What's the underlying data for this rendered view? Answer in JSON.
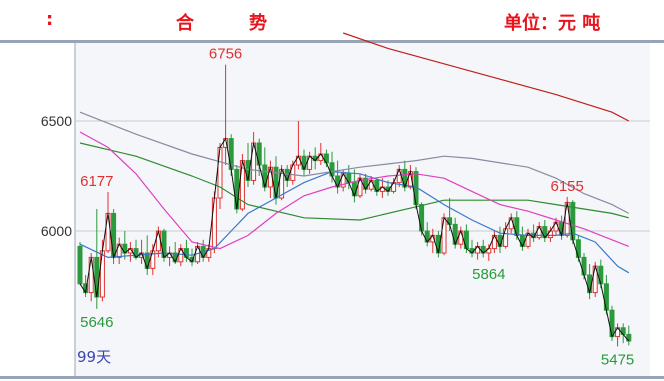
{
  "header": {
    "left": ":",
    "mid1": "合",
    "mid2": "势",
    "unit": "单位：元 吨"
  },
  "chart_data": {
    "type": "candlestick",
    "title": "",
    "xlabel": "",
    "ylabel": "",
    "ylim": [
      5400,
      6900
    ],
    "y_ticks": [
      6500,
      6000
    ],
    "period_label": "99天",
    "grid": "horizontal",
    "colors": {
      "up": "#e03131",
      "down": "#2b9a3c",
      "ma_dark": "#111111",
      "ma_blue": "#3b78c9",
      "ma_green": "#2e8b2e",
      "ma_magenta": "#e040c0",
      "ma_grey": "#8a8aa0",
      "ma_red": "#c0201a",
      "background": "#f4f6fa",
      "grid": "#c7c9cf",
      "frame": "#9aa3b5"
    },
    "annotations": [
      {
        "text": "6756",
        "index": 26,
        "price": 6756,
        "color": "#e03131",
        "pos": "above"
      },
      {
        "text": "6177",
        "index": 3,
        "price": 6177,
        "color": "#e03131",
        "pos": "above"
      },
      {
        "text": "5646",
        "index": 3,
        "price": 5646,
        "color": "#2b9a3c",
        "pos": "below"
      },
      {
        "text": "6155",
        "index": 87,
        "price": 6155,
        "color": "#e03131",
        "pos": "above"
      },
      {
        "text": "5864",
        "index": 73,
        "price": 5864,
        "color": "#2b9a3c",
        "pos": "below"
      },
      {
        "text": "5475",
        "index": 96,
        "price": 5475,
        "color": "#2b9a3c",
        "pos": "below"
      }
    ],
    "candles": [
      [
        5930,
        5950,
        5760,
        5760
      ],
      [
        5760,
        5800,
        5700,
        5720
      ],
      [
        5720,
        5900,
        5680,
        5880
      ],
      [
        5880,
        6100,
        5646,
        5700
      ],
      [
        5700,
        5960,
        5680,
        5910
      ],
      [
        5910,
        6177,
        5900,
        6080
      ],
      [
        6080,
        6100,
        5850,
        5880
      ],
      [
        5880,
        5970,
        5850,
        5940
      ],
      [
        5940,
        6000,
        5870,
        5900
      ],
      [
        5900,
        5950,
        5860,
        5920
      ],
      [
        5920,
        5960,
        5870,
        5880
      ],
      [
        5880,
        5960,
        5850,
        5900
      ],
      [
        5900,
        5980,
        5800,
        5830
      ],
      [
        5830,
        5940,
        5800,
        5910
      ],
      [
        5910,
        6020,
        5880,
        6000
      ],
      [
        6000,
        6010,
        5860,
        5880
      ],
      [
        5880,
        5930,
        5840,
        5900
      ],
      [
        5900,
        5950,
        5850,
        5860
      ],
      [
        5860,
        5940,
        5840,
        5920
      ],
      [
        5920,
        5960,
        5860,
        5880
      ],
      [
        5880,
        5920,
        5840,
        5860
      ],
      [
        5860,
        5950,
        5850,
        5930
      ],
      [
        5930,
        5960,
        5860,
        5880
      ],
      [
        5880,
        5940,
        5860,
        5920
      ],
      [
        5920,
        6180,
        5900,
        6150
      ],
      [
        6150,
        6400,
        6100,
        6380
      ],
      [
        6380,
        6756,
        6300,
        6420
      ],
      [
        6420,
        6440,
        6250,
        6280
      ],
      [
        6280,
        6300,
        6080,
        6100
      ],
      [
        6100,
        6350,
        6090,
        6320
      ],
      [
        6320,
        6400,
        6200,
        6230
      ],
      [
        6230,
        6450,
        6210,
        6400
      ],
      [
        6400,
        6420,
        6250,
        6300
      ],
      [
        6300,
        6380,
        6180,
        6200
      ],
      [
        6200,
        6320,
        6150,
        6290
      ],
      [
        6290,
        6340,
        6120,
        6150
      ],
      [
        6150,
        6300,
        6140,
        6280
      ],
      [
        6280,
        6300,
        6200,
        6230
      ],
      [
        6230,
        6320,
        6210,
        6300
      ],
      [
        6300,
        6500,
        6280,
        6340
      ],
      [
        6340,
        6370,
        6250,
        6280
      ],
      [
        6280,
        6360,
        6260,
        6340
      ],
      [
        6340,
        6380,
        6280,
        6320
      ],
      [
        6320,
        6400,
        6300,
        6350
      ],
      [
        6350,
        6370,
        6290,
        6310
      ],
      [
        6310,
        6360,
        6220,
        6250
      ],
      [
        6250,
        6320,
        6170,
        6200
      ],
      [
        6200,
        6280,
        6180,
        6260
      ],
      [
        6260,
        6300,
        6190,
        6220
      ],
      [
        6220,
        6280,
        6130,
        6160
      ],
      [
        6160,
        6260,
        6150,
        6240
      ],
      [
        6240,
        6260,
        6170,
        6190
      ],
      [
        6190,
        6250,
        6180,
        6230
      ],
      [
        6230,
        6240,
        6160,
        6180
      ],
      [
        6180,
        6240,
        6150,
        6200
      ],
      [
        6200,
        6230,
        6160,
        6180
      ],
      [
        6180,
        6240,
        6170,
        6220
      ],
      [
        6220,
        6300,
        6200,
        6280
      ],
      [
        6280,
        6320,
        6180,
        6200
      ],
      [
        6200,
        6300,
        6190,
        6270
      ],
      [
        6270,
        6290,
        6100,
        6120
      ],
      [
        6120,
        6130,
        5980,
        6000
      ],
      [
        6000,
        6040,
        5930,
        5950
      ],
      [
        5950,
        6010,
        5900,
        5980
      ],
      [
        5980,
        6000,
        5880,
        5900
      ],
      [
        5900,
        6080,
        5890,
        6060
      ],
      [
        6060,
        6150,
        6000,
        6030
      ],
      [
        6030,
        6060,
        5920,
        5940
      ],
      [
        5940,
        6020,
        5920,
        6000
      ],
      [
        6000,
        6030,
        5900,
        5920
      ],
      [
        5920,
        5960,
        5880,
        5900
      ],
      [
        5900,
        5950,
        5870,
        5930
      ],
      [
        5930,
        5960,
        5880,
        5900
      ],
      [
        5900,
        5940,
        5864,
        5920
      ],
      [
        5920,
        6000,
        5900,
        5980
      ],
      [
        5980,
        6020,
        5900,
        5930
      ],
      [
        5930,
        6040,
        5920,
        6010
      ],
      [
        6010,
        6080,
        5990,
        6060
      ],
      [
        6060,
        6090,
        5960,
        5980
      ],
      [
        5980,
        6020,
        5910,
        5930
      ],
      [
        5930,
        6010,
        5920,
        5990
      ],
      [
        5990,
        6030,
        5950,
        5970
      ],
      [
        5970,
        6040,
        5960,
        6020
      ],
      [
        6020,
        6050,
        5950,
        5970
      ],
      [
        5970,
        6020,
        5950,
        6000
      ],
      [
        6000,
        6060,
        5980,
        6040
      ],
      [
        6040,
        6070,
        5960,
        5980
      ],
      [
        5980,
        6155,
        5970,
        6130
      ],
      [
        6130,
        6140,
        5940,
        5960
      ],
      [
        5960,
        5980,
        5860,
        5880
      ],
      [
        5880,
        5900,
        5780,
        5800
      ],
      [
        5800,
        5850,
        5690,
        5720
      ],
      [
        5720,
        5860,
        5700,
        5840
      ],
      [
        5840,
        5870,
        5740,
        5760
      ],
      [
        5760,
        5800,
        5620,
        5640
      ],
      [
        5640,
        5660,
        5500,
        5520
      ],
      [
        5520,
        5580,
        5475,
        5560
      ],
      [
        5560,
        5580,
        5490,
        5530
      ],
      [
        5530,
        5570,
        5480,
        5500
      ]
    ],
    "moving_averages": [
      {
        "color": "#3b78c9",
        "points": [
          [
            0,
            5940
          ],
          [
            5,
            5880
          ],
          [
            10,
            5890
          ],
          [
            15,
            5900
          ],
          [
            20,
            5890
          ],
          [
            24,
            5920
          ],
          [
            27,
            6000
          ],
          [
            30,
            6080
          ],
          [
            35,
            6150
          ],
          [
            40,
            6220
          ],
          [
            45,
            6270
          ],
          [
            50,
            6260
          ],
          [
            55,
            6220
          ],
          [
            60,
            6200
          ],
          [
            65,
            6120
          ],
          [
            70,
            6050
          ],
          [
            75,
            5990
          ],
          [
            80,
            5980
          ],
          [
            85,
            5980
          ],
          [
            88,
            5990
          ],
          [
            92,
            5950
          ],
          [
            96,
            5840
          ],
          [
            98,
            5810
          ]
        ]
      },
      {
        "color": "#2e8b2e",
        "points": [
          [
            0,
            6400
          ],
          [
            10,
            6340
          ],
          [
            20,
            6250
          ],
          [
            25,
            6200
          ],
          [
            30,
            6120
          ],
          [
            40,
            6060
          ],
          [
            50,
            6050
          ],
          [
            60,
            6110
          ],
          [
            65,
            6140
          ],
          [
            70,
            6140
          ],
          [
            80,
            6140
          ],
          [
            85,
            6120
          ],
          [
            90,
            6100
          ],
          [
            95,
            6080
          ],
          [
            98,
            6060
          ]
        ]
      },
      {
        "color": "#e040c0",
        "points": [
          [
            0,
            6450
          ],
          [
            5,
            6380
          ],
          [
            10,
            6260
          ],
          [
            15,
            6100
          ],
          [
            20,
            5950
          ],
          [
            25,
            5920
          ],
          [
            30,
            5980
          ],
          [
            35,
            6080
          ],
          [
            40,
            6160
          ],
          [
            45,
            6200
          ],
          [
            50,
            6230
          ],
          [
            55,
            6250
          ],
          [
            60,
            6260
          ],
          [
            65,
            6240
          ],
          [
            70,
            6180
          ],
          [
            75,
            6120
          ],
          [
            80,
            6090
          ],
          [
            85,
            6050
          ],
          [
            90,
            6010
          ],
          [
            95,
            5960
          ],
          [
            98,
            5930
          ]
        ]
      },
      {
        "color": "#8a8aa0",
        "points": [
          [
            0,
            6540
          ],
          [
            10,
            6440
          ],
          [
            20,
            6350
          ],
          [
            30,
            6280
          ],
          [
            40,
            6250
          ],
          [
            50,
            6290
          ],
          [
            60,
            6320
          ],
          [
            65,
            6340
          ],
          [
            70,
            6330
          ],
          [
            80,
            6290
          ],
          [
            85,
            6240
          ],
          [
            90,
            6170
          ],
          [
            95,
            6120
          ],
          [
            98,
            6080
          ]
        ]
      },
      {
        "color": "#c0201a",
        "points": [
          [
            47,
            6900
          ],
          [
            55,
            6830
          ],
          [
            65,
            6760
          ],
          [
            75,
            6690
          ],
          [
            85,
            6620
          ],
          [
            95,
            6540
          ],
          [
            98,
            6500
          ]
        ]
      }
    ]
  }
}
